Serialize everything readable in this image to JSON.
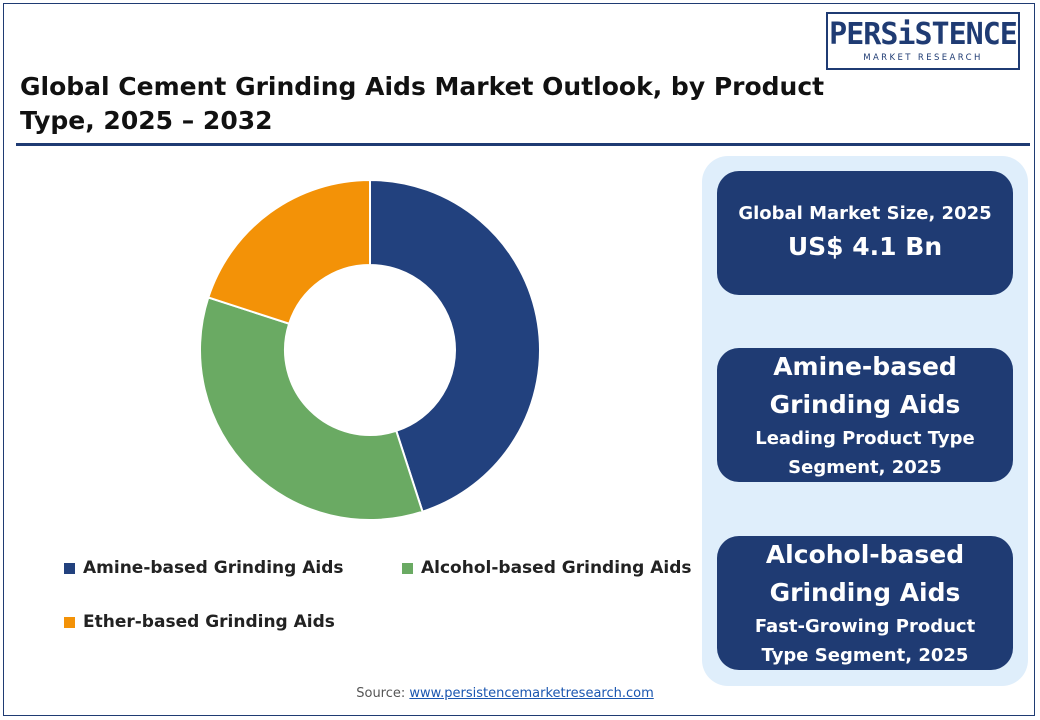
{
  "header": {
    "title": "Global Cement Grinding Aids Market Outlook, by Product Type, 2025 – 2032",
    "logo_main": "PERSiSTENCE",
    "logo_sub": "MARKET RESEARCH"
  },
  "colors": {
    "brand_navy": "#1f3b73",
    "panel_bg": "#dfeefb"
  },
  "chart_data": {
    "type": "pie",
    "variant": "donut",
    "title": "",
    "categories": [
      "Amine-based Grinding Aids",
      "Alcohol-based Grinding Aids",
      "Ether-based Grinding Aids"
    ],
    "values": [
      45,
      35,
      20
    ],
    "colors": [
      "#22417e",
      "#6aaa63",
      "#f39207"
    ],
    "legend_position": "bottom",
    "start_angle_deg": 0,
    "direction": "clockwise"
  },
  "stats": {
    "market_size_label": "Global Market Size, 2025",
    "market_size_value": "US$ 4.1 Bn",
    "leading_segment_name_line1": "Amine-based",
    "leading_segment_name_line2": "Grinding Aids",
    "leading_segment_desc_line1": "Leading Product Type",
    "leading_segment_desc_line2": "Segment, 2025",
    "fast_segment_name_line1": "Alcohol-based",
    "fast_segment_name_line2": "Grinding Aids",
    "fast_segment_desc_line1": "Fast-Growing Product",
    "fast_segment_desc_line2": "Type Segment, 2025"
  },
  "footer": {
    "source_label": "Source:",
    "source_link": "www.persistencemarketresearch.com"
  }
}
